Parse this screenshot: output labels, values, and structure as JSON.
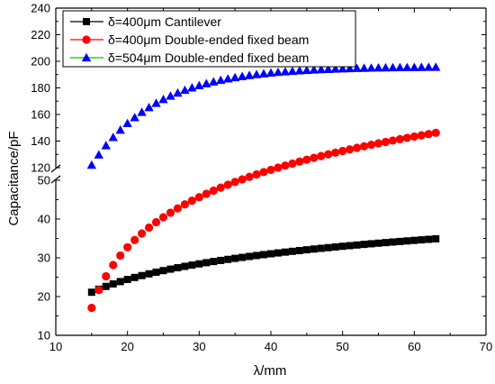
{
  "chart_data": {
    "type": "scatter",
    "xlabel": "λ/mm",
    "ylabel": "Capacitance/pF",
    "xlim": [
      10,
      70
    ],
    "x_ticks": [
      10,
      20,
      30,
      40,
      50,
      60,
      70
    ],
    "y_axis_break": true,
    "upper_ylim": [
      120,
      240
    ],
    "upper_y_ticks": [
      120,
      140,
      160,
      180,
      200,
      220,
      240
    ],
    "lower_ylim": [
      10,
      50
    ],
    "lower_y_ticks": [
      10,
      20,
      30,
      40,
      50
    ],
    "legend_position": "top-left",
    "series": [
      {
        "name": "δ=400μm Cantilever",
        "marker": "square",
        "color": "#000000",
        "x_start": 15,
        "x_end": 63,
        "x_step": 1,
        "curve": {
          "A": 4.7,
          "B": 17.2,
          "C": 6.0
        }
      },
      {
        "name": "δ=400μm Double-ended fixed beam",
        "marker": "circle",
        "color": "#ff0000",
        "x_start": 15,
        "x_end": 63,
        "x_step": 1,
        "curve": {
          "A": -0.42,
          "B": 36.7,
          "C": 12.0
        }
      },
      {
        "name": "δ=504μm Double-ended fixed beam",
        "marker": "triangle",
        "color": "#0000ff",
        "line_color": "#00cc00",
        "x_start": 15,
        "x_end": 63,
        "x_step": 1,
        "curve": {
          "type": "exp",
          "A": 196,
          "B": 74,
          "k": 0.11,
          "x0": 15
        }
      }
    ]
  }
}
